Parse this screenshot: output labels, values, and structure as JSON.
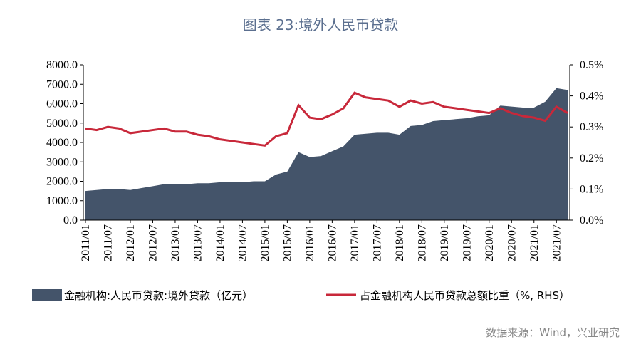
{
  "chart_data": {
    "type": "combo",
    "title": "图表 23:境外人民币贷款",
    "source": "数据来源：Wind，兴业研究",
    "categories": [
      "2011/01",
      null,
      "2011/07",
      null,
      "2012/01",
      null,
      "2012/07",
      null,
      "2013/01",
      null,
      "2013/07",
      null,
      "2014/01",
      null,
      "2014/07",
      null,
      "2015/01",
      null,
      "2015/07",
      null,
      "2016/01",
      null,
      "2016/07",
      null,
      "2017/01",
      null,
      "2017/07",
      null,
      "2018/01",
      null,
      "2018/07",
      null,
      "2019/01",
      null,
      "2019/07",
      null,
      "2020/01",
      null,
      "2020/07",
      null,
      "2021/01",
      null,
      "2021/07",
      null
    ],
    "ylim": [
      0,
      8000
    ],
    "yticks": [
      {
        "value": 0,
        "label": "0.0"
      },
      {
        "value": 1000,
        "label": "1000.0"
      },
      {
        "value": 2000,
        "label": "2000.0"
      },
      {
        "value": 3000,
        "label": "3000.0"
      },
      {
        "value": 4000,
        "label": "4000.0"
      },
      {
        "value": 5000,
        "label": "5000.0"
      },
      {
        "value": 6000,
        "label": "6000.0"
      },
      {
        "value": 7000,
        "label": "7000.0"
      },
      {
        "value": 8000,
        "label": "8000.0"
      }
    ],
    "y2lim": [
      0,
      0.5
    ],
    "y2ticks": [
      {
        "value": 0,
        "label": "0.0%"
      },
      {
        "value": 0.1,
        "label": "0.1%"
      },
      {
        "value": 0.2,
        "label": "0.2%"
      },
      {
        "value": 0.3,
        "label": "0.3%"
      },
      {
        "value": 0.4,
        "label": "0.4%"
      },
      {
        "value": 0.5,
        "label": "0.5%"
      }
    ],
    "series": [
      {
        "name": "金融机构:人民币贷款:境外贷款（亿元）",
        "type": "area",
        "color": "#44546a",
        "values": [
          1500,
          1550,
          1600,
          1600,
          1550,
          1650,
          1750,
          1850,
          1850,
          1850,
          1900,
          1900,
          1950,
          1950,
          1950,
          2000,
          2000,
          2350,
          2500,
          3500,
          3250,
          3300,
          3550,
          3800,
          4400,
          4450,
          4500,
          4500,
          4400,
          4850,
          4900,
          5100,
          5150,
          5200,
          5250,
          5350,
          5400,
          5900,
          5850,
          5800,
          5800,
          6100,
          6800,
          6700
        ]
      },
      {
        "name": "占金融机构人民币贷款总额比重（%, RHS）",
        "type": "line",
        "axis": "y2",
        "color": "#c8283a",
        "values": [
          0.295,
          0.29,
          0.3,
          0.295,
          0.28,
          0.285,
          0.29,
          0.295,
          0.285,
          0.285,
          0.275,
          0.27,
          0.26,
          0.255,
          0.25,
          0.245,
          0.24,
          0.27,
          0.28,
          0.37,
          0.33,
          0.325,
          0.34,
          0.36,
          0.41,
          0.395,
          0.39,
          0.385,
          0.365,
          0.385,
          0.375,
          0.38,
          0.365,
          0.36,
          0.355,
          0.35,
          0.345,
          0.36,
          0.345,
          0.335,
          0.33,
          0.32,
          0.365,
          0.345
        ]
      }
    ]
  }
}
